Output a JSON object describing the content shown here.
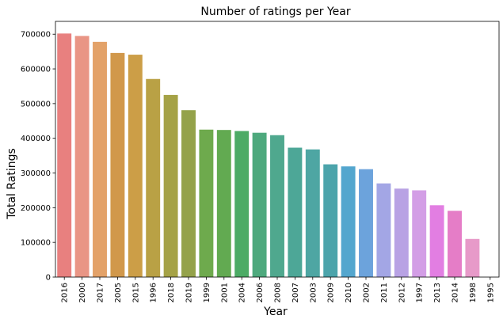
{
  "chart_data": {
    "type": "bar",
    "title": "Number of ratings per Year",
    "xlabel": "Year",
    "ylabel": "Total Ratings",
    "categories": [
      "2016",
      "2000",
      "2017",
      "2005",
      "2015",
      "1996",
      "2018",
      "2019",
      "1999",
      "2001",
      "2004",
      "2006",
      "2008",
      "2007",
      "2003",
      "2009",
      "2010",
      "2002",
      "2011",
      "2012",
      "1997",
      "2013",
      "2014",
      "1998",
      "1995"
    ],
    "values": [
      702000,
      695000,
      678000,
      646000,
      641000,
      571000,
      525000,
      481000,
      425000,
      424000,
      421000,
      416000,
      409000,
      373000,
      368000,
      325000,
      319000,
      311000,
      270000,
      255000,
      250000,
      207000,
      191000,
      110000,
      0
    ],
    "colors": [
      "#e8807f",
      "#e99585",
      "#e3a269",
      "#d1984b",
      "#cc9e47",
      "#b9a145",
      "#a5a246",
      "#94a24a",
      "#6eaa4d",
      "#62aa51",
      "#4cab65",
      "#4ea97d",
      "#4fa88e",
      "#4da797",
      "#4ea6a3",
      "#4ca4ab",
      "#53a6ce",
      "#6ca3dc",
      "#a3a6e5",
      "#b8a2e4",
      "#d39ee6",
      "#e27ee2",
      "#e57dc7",
      "#e79ac9",
      "#e8a1c4"
    ],
    "yticks": [
      0,
      100000,
      200000,
      300000,
      400000,
      500000,
      600000,
      700000
    ],
    "ylim": [
      0,
      737000
    ],
    "grid": false
  }
}
